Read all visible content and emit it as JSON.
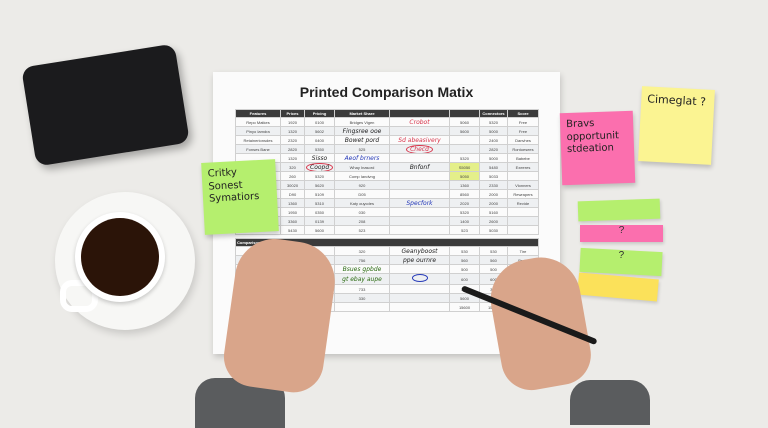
{
  "document": {
    "title": "Printed Comparison Matix",
    "headers": [
      "Features",
      "Prices",
      "Pricing",
      "Market Share",
      "",
      "",
      "Connectors",
      "Score"
    ],
    "rows": [
      [
        "Repo Matkes",
        "1920",
        "0100",
        "Bridges Vigen",
        "",
        "5060",
        "5320",
        "Free"
      ],
      [
        "Pinyo Iamdra",
        "1320",
        "5602",
        "",
        "",
        "5600",
        "5000",
        "Free"
      ],
      [
        "Retainerionsdes",
        "2320",
        "0400",
        "",
        "",
        "",
        "2400",
        "Danvhes"
      ],
      [
        "Fonses Bane",
        "2820",
        "5350",
        "525",
        "",
        "",
        "2820",
        "Rontoesees"
      ],
      [
        "",
        "1320",
        "",
        "",
        "",
        "5320",
        "5000",
        "Babebe"
      ],
      [
        "",
        "320",
        "",
        "Whay Inasord",
        "",
        "S5050",
        "5480",
        "Exeeres"
      ],
      [
        "",
        "260",
        "5320",
        "Comp Iandvng",
        "",
        "5050",
        "5033",
        ""
      ],
      [
        "",
        "30020",
        "5620",
        "920",
        "",
        "1360",
        "2330",
        "Vlonners"
      ],
      [
        "",
        "D90",
        "5109",
        "D05",
        "",
        "8560",
        "2000",
        "Rewrapers"
      ],
      [
        "",
        "1360",
        "5310",
        "Katy ouycdes",
        "",
        "2020",
        "2000",
        "Revide"
      ],
      [
        "",
        "1950",
        "0350",
        "030",
        "",
        "5320",
        "5160",
        ""
      ],
      [
        "",
        "3360",
        "0139",
        "208",
        "",
        "1400",
        "2600",
        ""
      ],
      [
        "",
        "5430",
        "5600",
        "523",
        "",
        "523",
        "5030",
        ""
      ]
    ],
    "section2_header": "Comparisoeuuige",
    "rows2": [
      [
        "",
        "Exsotues",
        "",
        "320",
        "",
        "530",
        "530",
        "Tire"
      ],
      [
        "",
        "",
        "",
        "756",
        "",
        "560",
        "560",
        "Brote"
      ],
      [
        "",
        "",
        "",
        "",
        "",
        "500",
        "500",
        "Bade"
      ],
      [
        "",
        "",
        "",
        "",
        "",
        "600",
        "600",
        ""
      ],
      [
        "",
        "",
        "",
        "733",
        "",
        "320",
        "320",
        ""
      ],
      [
        "",
        "",
        "",
        "330",
        "",
        "5600",
        "5600",
        ""
      ],
      [
        "",
        "",
        "",
        "",
        "",
        "15600",
        "15600",
        ""
      ]
    ],
    "highlighted_cells": [
      "S5050",
      "5050"
    ],
    "annotations": {
      "red_1": "Crobot",
      "red_2": "Checd",
      "red_3": "Sd abeasivery",
      "red_4": "Coopd",
      "red_5": "Sisso",
      "black_1": "Fingsree ooe",
      "black_2": "Bowet pord",
      "black_3": "Bnfonf",
      "blue_1": "Aeof brners",
      "blue_2": "Specfork",
      "green_1": "Bsues gpbde",
      "green_2": "gt ebay aupe",
      "black_4": "Geanyboost",
      "black_5": "ppe ournre"
    }
  },
  "stickies": {
    "green": "Critky Sonest Symatiors",
    "pink": "Bravs opportunit stdeation",
    "yellow": "Cimeglat ?",
    "strip_pink": "?",
    "strip_green": "?"
  },
  "colors": {
    "sticky_green": "#b5ef6e",
    "sticky_pink": "#fb6fae",
    "sticky_yellow": "#fbf492",
    "highlight": "#e4ef8a",
    "red_ink": "#d8344a",
    "blue_ink": "#2438b8"
  }
}
